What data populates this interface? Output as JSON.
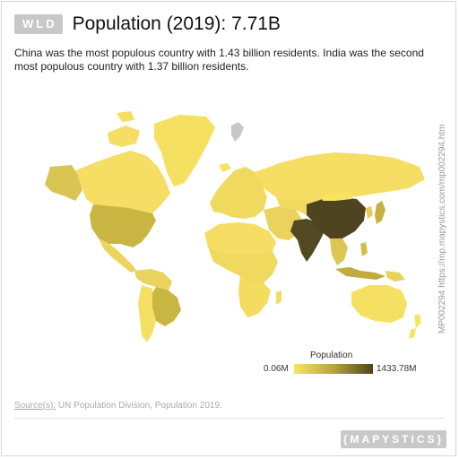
{
  "header": {
    "code": "WLD",
    "title": "Population (2019): 7.71B"
  },
  "description": "China was the most populous country with 1.43 billion residents. India was the second most populous country with 1.37 billion residents.",
  "side_text": "MP002294 https://mp.mapystics.com/mp002294.htm",
  "legend": {
    "title": "Population",
    "min": "0.06M",
    "max": "1433.78M"
  },
  "source": {
    "label": "Source(s):",
    "text": " UN Population Division, Population 2019."
  },
  "brand": "{MAPYSTICS}",
  "colors": {
    "low": "#f7e463",
    "mid": "#c9b642",
    "high": "#4e4420",
    "no_data": "#c8c8c8"
  }
}
